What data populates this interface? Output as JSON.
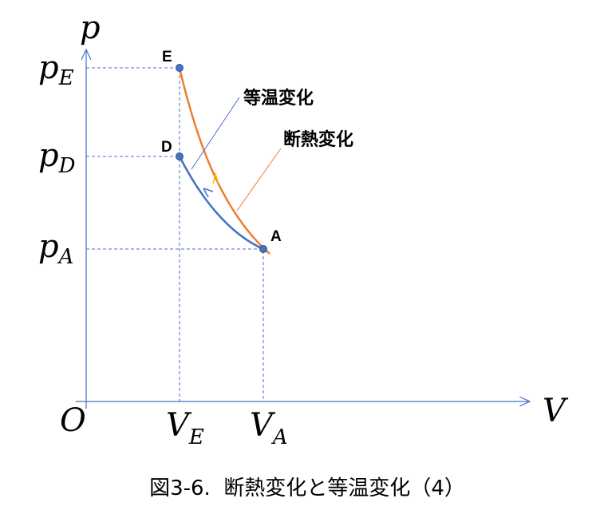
{
  "axes": {
    "y_label": "p",
    "x_label": "V",
    "origin": "O"
  },
  "y_ticks": [
    {
      "main": "p",
      "sub": "E"
    },
    {
      "main": "p",
      "sub": "D"
    },
    {
      "main": "p",
      "sub": "A"
    }
  ],
  "x_ticks": [
    {
      "main": "V",
      "sub": "E"
    },
    {
      "main": "V",
      "sub": "A"
    }
  ],
  "points": [
    "E",
    "D",
    "A"
  ],
  "curves": [
    "等温変化",
    "断熱変化"
  ],
  "caption": "図3-6.  断熱変化と等温変化（4）"
}
